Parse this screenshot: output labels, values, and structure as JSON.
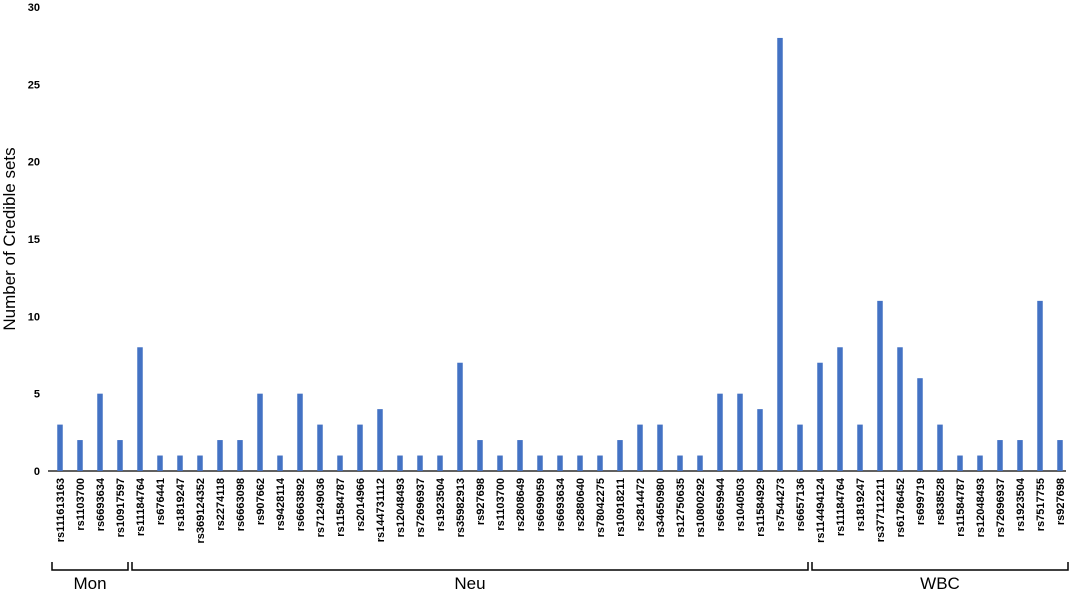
{
  "chart_data": {
    "type": "bar",
    "ylabel": "Number of Credible sets",
    "ylim": [
      0,
      30
    ],
    "yticks": [
      0,
      5,
      10,
      15,
      20,
      25,
      30
    ],
    "grid": false,
    "categories": [
      "rs111613163",
      "rs1103700",
      "rs6693634",
      "rs10917597",
      "rs11184764",
      "rs676441",
      "rs1819247",
      "rs369124352",
      "rs2274118",
      "rs6663098",
      "rs907662",
      "rs9428114",
      "rs6663892",
      "rs71249036",
      "rs11584787",
      "rs2014966",
      "rs144731112",
      "rs12048493",
      "rs72696937",
      "rs1923504",
      "rs35982913",
      "rs927698",
      "rs1103700",
      "rs2808649",
      "rs6699059",
      "rs6693634",
      "rs2880640",
      "rs78042275",
      "rs10918211",
      "rs2814472",
      "rs34650980",
      "rs12750635",
      "rs10800292",
      "rs6659944",
      "rs1040503",
      "rs11584929",
      "rs7544273",
      "rs6657136",
      "rs114494124",
      "rs11184764",
      "rs1819247",
      "rs377112211",
      "rs61786452",
      "rs699719",
      "rs838528",
      "rs11584787",
      "rs12048493",
      "rs72696937",
      "rs1923504",
      "rs7517755",
      "rs927698"
    ],
    "values": [
      3,
      2,
      5,
      2,
      8,
      1,
      1,
      1,
      2,
      2,
      5,
      1,
      5,
      3,
      1,
      3,
      4,
      1,
      1,
      1,
      7,
      2,
      1,
      2,
      1,
      1,
      1,
      1,
      2,
      3,
      3,
      1,
      1,
      5,
      5,
      4,
      28,
      3,
      7,
      8,
      3,
      11,
      8,
      6,
      3,
      1,
      1,
      2,
      2,
      11,
      2
    ],
    "groups": [
      {
        "label": "Mon",
        "start": 0,
        "end": 3
      },
      {
        "label": "Neu",
        "start": 4,
        "end": 37
      },
      {
        "label": "WBC",
        "start": 38,
        "end": 50
      }
    ],
    "bar_color": "#4472c4"
  }
}
